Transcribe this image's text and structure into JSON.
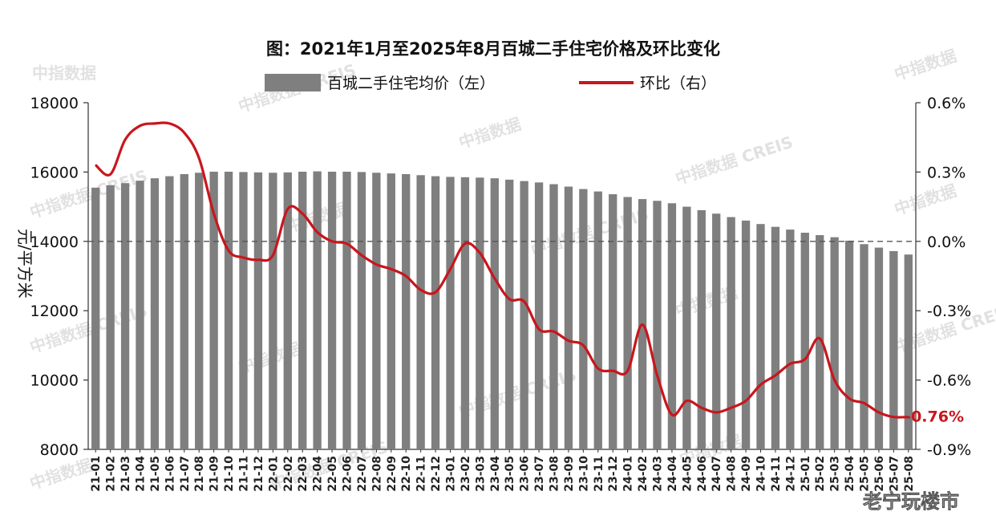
{
  "chart_data": {
    "type": "bar",
    "title": "图：2021年1月至2025年8月百城二手住宅价格及环比变化",
    "ylabel": "元/平方米",
    "ylim": [
      8000,
      18000
    ],
    "y_ticks": [
      "18000",
      "16000",
      "14000",
      "12000",
      "10000",
      "8000"
    ],
    "y2lim": [
      -0.9,
      0.6
    ],
    "y2_ticks": [
      "0.6%",
      "0.3%",
      "0.0%",
      "-0.3%",
      "-0.6%",
      "-0.9%"
    ],
    "legend_placement": "top",
    "grid": false,
    "categories": [
      "21-01",
      "21-02",
      "21-03",
      "21-04",
      "21-05",
      "21-06",
      "21-07",
      "21-08",
      "21-09",
      "21-10",
      "21-11",
      "21-12",
      "22-01",
      "22-02",
      "22-03",
      "22-04",
      "22-05",
      "22-06",
      "22-07",
      "22-08",
      "22-09",
      "22-10",
      "22-11",
      "22-12",
      "23-01",
      "23-02",
      "23-03",
      "23-04",
      "23-05",
      "23-06",
      "23-07",
      "23-08",
      "23-09",
      "23-10",
      "23-11",
      "23-12",
      "24-01",
      "24-02",
      "24-03",
      "24-04",
      "24-05",
      "24-06",
      "24-07",
      "24-08",
      "24-09",
      "24-10",
      "24-11",
      "24-12",
      "25-01",
      "25-02",
      "25-03",
      "25-04",
      "25-05",
      "25-06",
      "25-07",
      "25-08"
    ],
    "series": [
      {
        "name": "百城二手住宅均价（左）",
        "kind": "bar",
        "axis": "left",
        "color": "#7f7f7f",
        "values": [
          15550,
          15620,
          15680,
          15750,
          15820,
          15880,
          15940,
          15980,
          16010,
          16010,
          16000,
          15990,
          15980,
          15990,
          16010,
          16020,
          16010,
          16010,
          16000,
          15980,
          15960,
          15940,
          15910,
          15880,
          15860,
          15850,
          15840,
          15820,
          15780,
          15740,
          15700,
          15650,
          15580,
          15510,
          15440,
          15360,
          15280,
          15220,
          15170,
          15100,
          15000,
          14900,
          14800,
          14700,
          14600,
          14500,
          14420,
          14340,
          14250,
          14180,
          14120,
          14020,
          13920,
          13820,
          13720,
          13620
        ]
      },
      {
        "name": "环比（右）",
        "kind": "line",
        "axis": "right",
        "color": "#c8161d",
        "values": [
          0.33,
          0.29,
          0.44,
          0.5,
          0.51,
          0.51,
          0.47,
          0.36,
          0.12,
          -0.04,
          -0.07,
          -0.08,
          -0.06,
          0.14,
          0.12,
          0.04,
          0.0,
          -0.01,
          -0.06,
          -0.1,
          -0.12,
          -0.15,
          -0.21,
          -0.22,
          -0.12,
          -0.01,
          -0.05,
          -0.16,
          -0.25,
          -0.26,
          -0.38,
          -0.39,
          -0.43,
          -0.45,
          -0.55,
          -0.56,
          -0.56,
          -0.36,
          -0.58,
          -0.75,
          -0.69,
          -0.72,
          -0.74,
          -0.72,
          -0.69,
          -0.62,
          -0.58,
          -0.53,
          -0.51,
          -0.42,
          -0.6,
          -0.68,
          -0.7,
          -0.74,
          -0.76,
          -0.76
        ]
      }
    ],
    "end_label": "-0.76%",
    "watermarks": [
      "中指数据",
      "中指数据 CREIS"
    ],
    "account_label": "老宁玩楼市"
  }
}
